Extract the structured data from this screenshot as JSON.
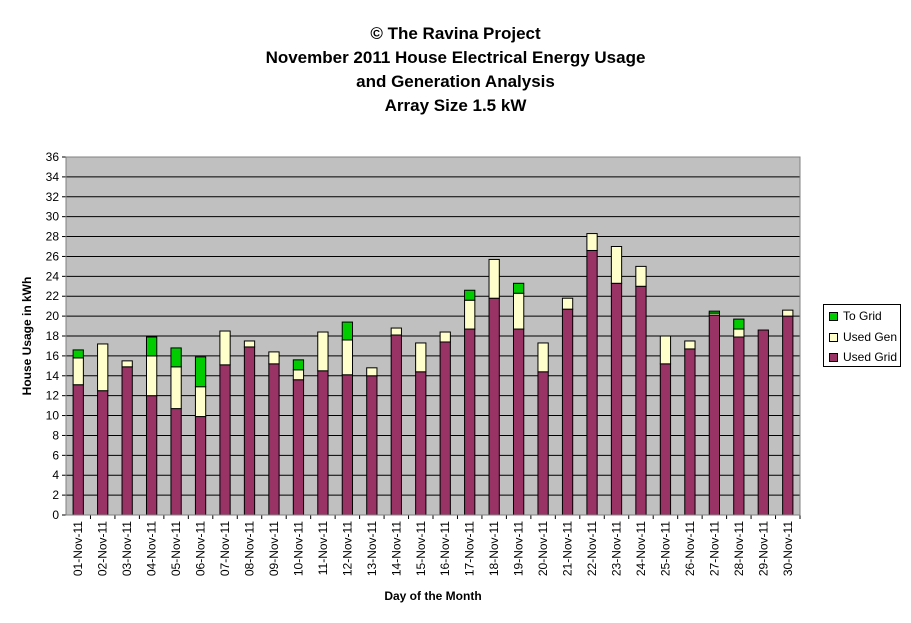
{
  "colors": {
    "plot_bg": "#C0C0C0",
    "used_grid": "#993366",
    "used_gen": "#FFFFCC",
    "to_grid": "#00CC00",
    "gridline": "#000000"
  },
  "chart_data": {
    "type": "bar",
    "stacked": true,
    "title": [
      "© The Ravina Project",
      "November 2011 House Electrical Energy Usage",
      "and Generation Analysis",
      "Array Size 1.5 kW"
    ],
    "xlabel": "Day of the Month",
    "ylabel": "House Usage in kWh",
    "ylim": [
      0,
      36
    ],
    "ytick_step": 2,
    "grid": true,
    "legend_position": "right",
    "categories": [
      "01-Nov-11",
      "02-Nov-11",
      "03-Nov-11",
      "04-Nov-11",
      "05-Nov-11",
      "06-Nov-11",
      "07-Nov-11",
      "08-Nov-11",
      "09-Nov-11",
      "10-Nov-11",
      "11-Nov-11",
      "12-Nov-11",
      "13-Nov-11",
      "14-Nov-11",
      "15-Nov-11",
      "16-Nov-11",
      "17-Nov-11",
      "18-Nov-11",
      "19-Nov-11",
      "20-Nov-11",
      "21-Nov-11",
      "22-Nov-11",
      "23-Nov-11",
      "24-Nov-11",
      "25-Nov-11",
      "26-Nov-11",
      "27-Nov-11",
      "28-Nov-11",
      "29-Nov-11",
      "30-Nov-11"
    ],
    "series": [
      {
        "name": "Used Grid",
        "values": [
          13.1,
          12.5,
          14.9,
          12.0,
          10.7,
          9.9,
          15.1,
          16.9,
          15.2,
          13.6,
          14.5,
          14.1,
          14.0,
          18.1,
          14.4,
          17.4,
          18.7,
          21.8,
          18.7,
          14.4,
          20.7,
          26.6,
          23.3,
          23.0,
          15.2,
          16.7,
          20.1,
          17.9,
          18.6,
          20.0
        ]
      },
      {
        "name": "Used Gen",
        "values": [
          2.7,
          4.7,
          0.6,
          4.0,
          4.2,
          3.0,
          3.4,
          0.6,
          1.2,
          1.0,
          3.9,
          3.5,
          0.8,
          0.7,
          2.9,
          1.0,
          2.9,
          3.9,
          3.6,
          2.9,
          1.1,
          1.7,
          3.7,
          2.0,
          2.8,
          0.8,
          0.2,
          0.8,
          0.0,
          0.6
        ]
      },
      {
        "name": "To Grid",
        "values": [
          0.8,
          0.0,
          0.0,
          1.9,
          1.9,
          3.0,
          0.0,
          0.0,
          0.0,
          1.0,
          0.0,
          1.8,
          0.0,
          0.0,
          0.0,
          0.0,
          1.0,
          0.0,
          1.0,
          0.0,
          0.0,
          0.0,
          0.0,
          0.0,
          0.0,
          0.0,
          0.2,
          1.0,
          0.0,
          0.0
        ]
      }
    ]
  }
}
